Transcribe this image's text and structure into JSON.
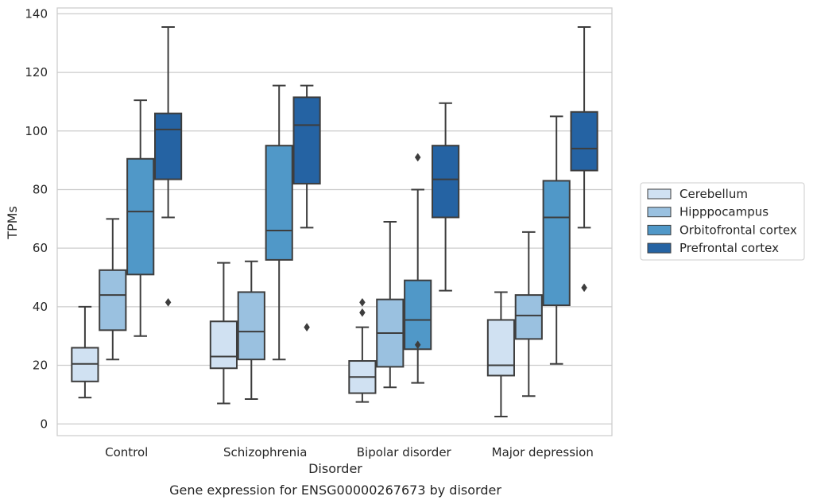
{
  "chart_data": {
    "type": "box",
    "caption": "Gene expression for ENSG00000267673 by disorder",
    "xlabel": "Disorder",
    "ylabel": "TPMs",
    "ylim": [
      -4,
      142
    ],
    "yticks": [
      0,
      20,
      40,
      60,
      80,
      100,
      120,
      140
    ],
    "grid": "horizontal",
    "legend_position": "right",
    "categories": [
      "Control",
      "Schizophrenia",
      "Bipolar disorder",
      "Major depression"
    ],
    "series": [
      {
        "name": "Cerebellum",
        "color": "#d0e1f2",
        "boxes": [
          {
            "whislo": 9,
            "q1": 14.5,
            "med": 20.5,
            "q3": 26,
            "whishi": 40,
            "fliers": []
          },
          {
            "whislo": 7,
            "q1": 19,
            "med": 23,
            "q3": 35,
            "whishi": 55,
            "fliers": []
          },
          {
            "whislo": 7.5,
            "q1": 10.5,
            "med": 16,
            "q3": 21.5,
            "whishi": 33,
            "fliers": [
              38,
              41.5
            ]
          },
          {
            "whislo": 2.5,
            "q1": 16.5,
            "med": 20,
            "q3": 35.5,
            "whishi": 45,
            "fliers": []
          }
        ]
      },
      {
        "name": "Hipppocampus",
        "color": "#9ac1e0",
        "boxes": [
          {
            "whislo": 22,
            "q1": 32,
            "med": 44,
            "q3": 52.5,
            "whishi": 70,
            "fliers": []
          },
          {
            "whislo": 8.5,
            "q1": 22,
            "med": 31.5,
            "q3": 45,
            "whishi": 55.5,
            "fliers": []
          },
          {
            "whislo": 12.5,
            "q1": 19.5,
            "med": 31,
            "q3": 42.5,
            "whishi": 69,
            "fliers": []
          },
          {
            "whislo": 9.5,
            "q1": 29,
            "med": 37,
            "q3": 44,
            "whishi": 65.5,
            "fliers": []
          }
        ]
      },
      {
        "name": "Orbitofrontal cortex",
        "color": "#5098c8",
        "boxes": [
          {
            "whislo": 30,
            "q1": 51,
            "med": 72.5,
            "q3": 90.5,
            "whishi": 110.5,
            "fliers": []
          },
          {
            "whislo": 22,
            "q1": 56,
            "med": 66,
            "q3": 95,
            "whishi": 115.5,
            "fliers": []
          },
          {
            "whislo": 14,
            "q1": 25.5,
            "med": 35.5,
            "q3": 49,
            "whishi": 80,
            "fliers": [
              27,
              91
            ]
          },
          {
            "whislo": 20.5,
            "q1": 40.5,
            "med": 70.5,
            "q3": 83,
            "whishi": 105,
            "fliers": []
          }
        ]
      },
      {
        "name": "Prefrontal cortex",
        "color": "#2563a3",
        "boxes": [
          {
            "whislo": 70.5,
            "q1": 83.5,
            "med": 100.5,
            "q3": 106,
            "whishi": 135.5,
            "fliers": [
              41.5
            ]
          },
          {
            "whislo": 67,
            "q1": 82,
            "med": 102,
            "q3": 111.5,
            "whishi": 115.5,
            "fliers": [
              33
            ]
          },
          {
            "whislo": 45.5,
            "q1": 70.5,
            "med": 83.5,
            "q3": 95,
            "whishi": 109.5,
            "fliers": []
          },
          {
            "whislo": 67,
            "q1": 86.5,
            "med": 94,
            "q3": 106.5,
            "whishi": 135.5,
            "fliers": [
              46.5
            ]
          }
        ]
      }
    ]
  }
}
